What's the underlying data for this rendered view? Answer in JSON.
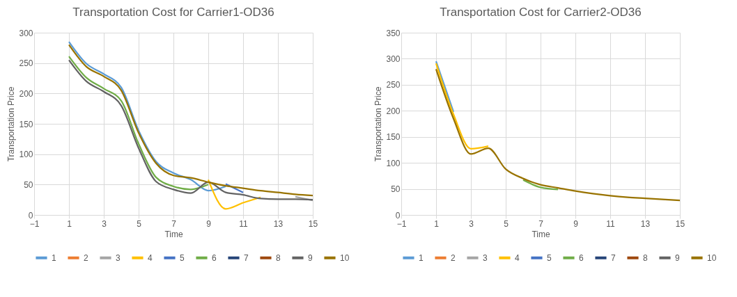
{
  "chart_data": [
    {
      "type": "line",
      "title": "Transportation Cost for Carrier1-OD36",
      "xlabel": "Time",
      "ylabel": "Transportation Price",
      "x": [
        1,
        2,
        3,
        4,
        5,
        6,
        7,
        8,
        9,
        10,
        11,
        12,
        13,
        14,
        15
      ],
      "xlim": [
        -1,
        15
      ],
      "xticks": [
        -1,
        1,
        3,
        5,
        7,
        9,
        11,
        13,
        15
      ],
      "ylim": [
        0,
        300
      ],
      "yticks": [
        0,
        50,
        100,
        150,
        200,
        250,
        300
      ],
      "grid": true,
      "legend": "bottom",
      "series": [
        {
          "name": "1",
          "color": "#5b9bd5",
          "values": [
            285,
            249,
            232,
            210,
            139,
            88,
            69,
            58,
            40,
            47,
            null,
            null,
            null,
            null,
            null
          ]
        },
        {
          "name": "2",
          "color": "#ed7d31",
          "values": [
            null,
            null,
            null,
            null,
            null,
            null,
            null,
            null,
            null,
            null,
            null,
            null,
            null,
            null,
            null
          ]
        },
        {
          "name": "3",
          "color": "#a5a5a5",
          "values": [
            null,
            null,
            null,
            null,
            null,
            null,
            null,
            null,
            null,
            null,
            null,
            null,
            null,
            30,
            24
          ]
        },
        {
          "name": "4",
          "color": "#ffc000",
          "values": [
            null,
            null,
            null,
            null,
            null,
            null,
            null,
            null,
            58,
            10,
            20,
            29,
            null,
            null,
            null
          ]
        },
        {
          "name": "5",
          "color": "#4472c4",
          "values": [
            null,
            null,
            null,
            null,
            null,
            null,
            null,
            null,
            null,
            51,
            37,
            null,
            null,
            null,
            null
          ]
        },
        {
          "name": "6",
          "color": "#70ad47",
          "values": [
            261,
            226,
            208,
            188,
            117,
            62,
            47,
            42,
            50,
            null,
            null,
            null,
            null,
            null,
            null
          ]
        },
        {
          "name": "7",
          "color": "#264478",
          "values": [
            null,
            null,
            null,
            null,
            null,
            null,
            null,
            null,
            null,
            null,
            null,
            null,
            null,
            null,
            null
          ]
        },
        {
          "name": "8",
          "color": "#9e480e",
          "values": [
            null,
            null,
            null,
            null,
            null,
            null,
            null,
            null,
            null,
            null,
            null,
            null,
            null,
            null,
            null
          ]
        },
        {
          "name": "9",
          "color": "#636363",
          "values": [
            255,
            220,
            203,
            180,
            110,
            55,
            42,
            36,
            54,
            37,
            33,
            27,
            26,
            26,
            25
          ]
        },
        {
          "name": "10",
          "color": "#997300",
          "values": [
            280,
            244,
            228,
            205,
            135,
            85,
            65,
            61,
            54,
            48,
            44,
            40,
            37,
            34,
            32
          ]
        }
      ]
    },
    {
      "type": "line",
      "title": "Transportation Cost for Carrier2-OD36",
      "xlabel": "Time",
      "ylabel": "Transportation Price",
      "x": [
        1,
        2,
        3,
        4,
        5,
        6,
        7,
        8,
        9,
        10,
        11,
        12,
        13,
        14,
        15
      ],
      "xlim": [
        -1,
        15
      ],
      "xticks": [
        -1,
        1,
        3,
        5,
        7,
        9,
        11,
        13,
        15
      ],
      "ylim": [
        0,
        350
      ],
      "yticks": [
        0,
        50,
        100,
        150,
        200,
        250,
        300,
        350
      ],
      "grid": true,
      "legend": "bottom",
      "series": [
        {
          "name": "1",
          "color": "#5b9bd5",
          "values": [
            295,
            198,
            null,
            null,
            null,
            null,
            null,
            null,
            null,
            null,
            null,
            null,
            null,
            null,
            null
          ]
        },
        {
          "name": "2",
          "color": "#ed7d31",
          "values": [
            null,
            null,
            null,
            null,
            null,
            null,
            null,
            null,
            null,
            null,
            null,
            null,
            null,
            null,
            null
          ]
        },
        {
          "name": "3",
          "color": "#a5a5a5",
          "values": [
            null,
            null,
            null,
            null,
            null,
            null,
            null,
            null,
            null,
            null,
            null,
            null,
            null,
            null,
            null
          ]
        },
        {
          "name": "4",
          "color": "#ffc000",
          "values": [
            291,
            193,
            127,
            132,
            null,
            null,
            null,
            null,
            null,
            null,
            null,
            null,
            null,
            null,
            null
          ]
        },
        {
          "name": "5",
          "color": "#4472c4",
          "values": [
            null,
            null,
            null,
            null,
            null,
            null,
            null,
            null,
            null,
            null,
            null,
            null,
            null,
            null,
            null
          ]
        },
        {
          "name": "6",
          "color": "#70ad47",
          "values": [
            null,
            null,
            null,
            null,
            null,
            67,
            53,
            49,
            null,
            null,
            null,
            null,
            null,
            null,
            null
          ]
        },
        {
          "name": "7",
          "color": "#264478",
          "values": [
            null,
            null,
            null,
            null,
            null,
            null,
            null,
            null,
            null,
            null,
            null,
            null,
            null,
            null,
            null
          ]
        },
        {
          "name": "8",
          "color": "#9e480e",
          "values": [
            null,
            null,
            null,
            null,
            null,
            null,
            null,
            null,
            null,
            null,
            null,
            null,
            null,
            null,
            null
          ]
        },
        {
          "name": "9",
          "color": "#636363",
          "values": [
            null,
            null,
            null,
            null,
            null,
            null,
            null,
            null,
            null,
            null,
            null,
            null,
            null,
            null,
            null
          ]
        },
        {
          "name": "10",
          "color": "#997300",
          "values": [
            280,
            185,
            117,
            128,
            88,
            70,
            58,
            52,
            46,
            41,
            37,
            34,
            32,
            30,
            28
          ]
        }
      ]
    }
  ]
}
